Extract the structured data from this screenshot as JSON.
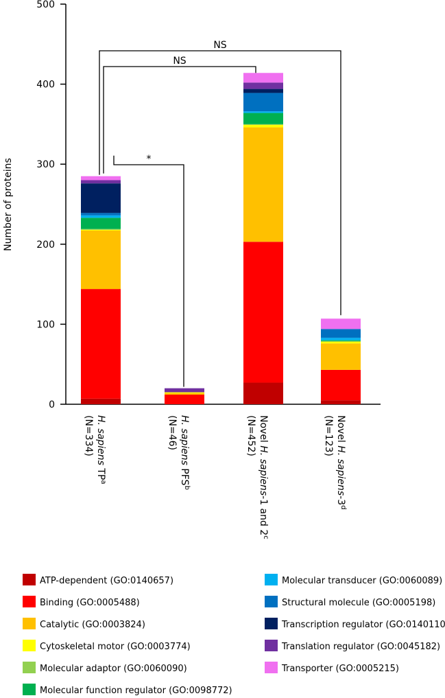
{
  "chart_data": {
    "type": "stacked_bar",
    "y_label": "Number of proteins",
    "categories": [
      {
        "parts": [
          {
            "text": "H. sapiens",
            "italic": true
          },
          {
            "text": " TP"
          },
          {
            "text": "a",
            "sup": true
          }
        ],
        "n": "(N=334)"
      },
      {
        "parts": [
          {
            "text": "H. sapiens",
            "italic": true
          },
          {
            "text": " PFS"
          },
          {
            "text": "b",
            "sup": true
          }
        ],
        "n": "(N=46)"
      },
      {
        "parts": [
          {
            "text": "Novel "
          },
          {
            "text": "H. sapiens",
            "italic": true
          },
          {
            "text": "-1 and  2"
          },
          {
            "text": "c",
            "sup": true
          }
        ],
        "n": "(N=452)"
      },
      {
        "parts": [
          {
            "text": "Novel "
          },
          {
            "text": "H. sapiens",
            "italic": true
          },
          {
            "text": "-3"
          },
          {
            "text": "d",
            "sup": true
          }
        ],
        "n": "(N=123)"
      }
    ],
    "series": [
      {
        "name": "ATP-dependent (GO:0140657)",
        "color": "#c00000",
        "values": [
          7,
          0,
          27,
          5
        ]
      },
      {
        "name": "Binding (GO:0005488)",
        "color": "#ff0000",
        "values": [
          137,
          12,
          176,
          38
        ]
      },
      {
        "name": "Catalytic (GO:0003824)",
        "color": "#ffc000",
        "values": [
          73,
          2,
          143,
          33
        ]
      },
      {
        "name": "Cytoskeletal motor (GO:0003774)",
        "color": "#ffff00",
        "values": [
          1,
          1,
          3,
          2
        ]
      },
      {
        "name": "Molecular adaptor (GO:0060090)",
        "color": "#92d050",
        "values": [
          1,
          0,
          1,
          1
        ]
      },
      {
        "name": "Molecular function regulator (GO:0098772)",
        "color": "#00b050",
        "values": [
          14,
          0,
          14,
          1
        ]
      },
      {
        "name": "Molecular transducer (GO:0060089)",
        "color": "#00b0f0",
        "values": [
          3,
          0,
          2,
          3
        ]
      },
      {
        "name": "Structural molecule (GO:0005198)",
        "color": "#0070c0",
        "values": [
          3,
          0,
          23,
          11
        ]
      },
      {
        "name": "Transcription regulator (GO:0140110)",
        "color": "#002060",
        "values": [
          37,
          0,
          5,
          0
        ]
      },
      {
        "name": "Translation regulator (GO:0045182)",
        "color": "#7030a0",
        "values": [
          4,
          5,
          8,
          0
        ]
      },
      {
        "name": "Transporter (GO:0005215)",
        "color": "#f070f0",
        "values": [
          5,
          0,
          12,
          13
        ]
      }
    ],
    "ylim": [
      0,
      500
    ],
    "yticks": [
      0,
      100,
      200,
      300,
      400,
      500
    ],
    "annotations": [
      "NS",
      "NS",
      "*"
    ]
  }
}
